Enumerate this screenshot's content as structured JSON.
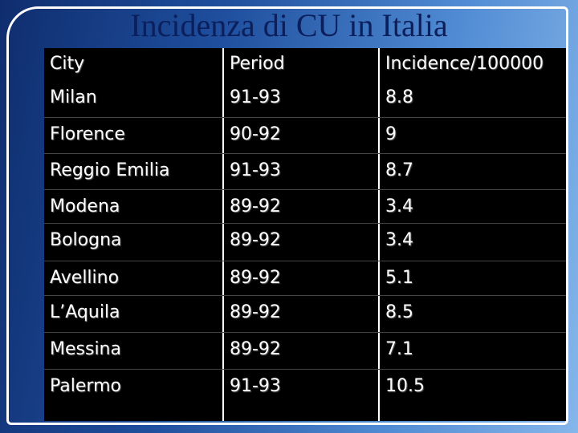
{
  "title": "Incidenza di CU in Italia",
  "table": {
    "header": [
      "City",
      "Period",
      "Incidence/100000"
    ],
    "rows": [
      [
        "Milan",
        "91-93",
        8.8
      ],
      [
        "Florence",
        "90-92",
        9
      ],
      [
        "Reggio Emilia",
        "91-93",
        8.7
      ],
      [
        "Modena",
        "89-92",
        3.4
      ],
      [
        "Bologna",
        "89-92",
        3.4
      ],
      [
        "Avellino",
        "89-92",
        5.1
      ],
      [
        "L’Aquila",
        "89-92",
        8.5
      ],
      [
        "Messina",
        "89-92",
        7.1
      ],
      [
        "Palermo",
        "91-93",
        10.5
      ]
    ]
  }
}
